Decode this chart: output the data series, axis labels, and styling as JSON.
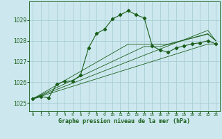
{
  "title": "Graphe pression niveau de la mer (hPa)",
  "bg_color": "#cce8ee",
  "grid_color": "#aacdd6",
  "line_color": "#1a5e1a",
  "xlim": [
    -0.5,
    23.5
  ],
  "ylim": [
    1024.6,
    1029.9
  ],
  "yticks": [
    1025,
    1026,
    1027,
    1028,
    1029
  ],
  "xticks": [
    0,
    1,
    2,
    3,
    4,
    5,
    6,
    7,
    8,
    9,
    10,
    11,
    12,
    13,
    14,
    15,
    16,
    17,
    18,
    19,
    20,
    21,
    22,
    23
  ],
  "main_x": [
    0,
    1,
    2,
    3,
    4,
    5,
    6,
    7,
    8,
    9,
    10,
    11,
    12,
    13,
    14,
    15,
    16,
    17,
    18,
    19,
    20,
    21,
    22,
    23
  ],
  "main_y": [
    1025.2,
    1025.3,
    1025.25,
    1025.9,
    1026.05,
    1026.05,
    1026.35,
    1027.65,
    1028.35,
    1028.55,
    1029.05,
    1029.25,
    1029.45,
    1029.25,
    1029.1,
    1027.75,
    1027.55,
    1027.45,
    1027.65,
    1027.75,
    1027.85,
    1027.9,
    1028.0,
    1027.85
  ],
  "forecast_lines": [
    [
      1025.2,
      1025.32,
      1025.44,
      1025.56,
      1025.68,
      1025.8,
      1025.92,
      1026.04,
      1026.16,
      1026.28,
      1026.4,
      1026.52,
      1026.64,
      1026.76,
      1026.88,
      1027.0,
      1027.12,
      1027.24,
      1027.36,
      1027.48,
      1027.6,
      1027.72,
      1027.84,
      1027.85
    ],
    [
      1025.2,
      1025.35,
      1025.5,
      1025.65,
      1025.8,
      1025.95,
      1026.1,
      1026.25,
      1026.4,
      1026.55,
      1026.7,
      1026.85,
      1027.0,
      1027.15,
      1027.3,
      1027.45,
      1027.6,
      1027.75,
      1027.9,
      1028.05,
      1028.2,
      1028.35,
      1028.5,
      1028.0
    ],
    [
      1025.2,
      1025.38,
      1025.56,
      1025.74,
      1025.92,
      1026.1,
      1026.28,
      1026.46,
      1026.64,
      1026.82,
      1027.0,
      1027.18,
      1027.36,
      1027.54,
      1027.72,
      1027.72,
      1027.72,
      1027.82,
      1027.92,
      1028.02,
      1028.12,
      1028.22,
      1028.32,
      1028.0
    ],
    [
      1025.2,
      1025.42,
      1025.64,
      1025.86,
      1026.08,
      1026.3,
      1026.52,
      1026.74,
      1026.96,
      1027.18,
      1027.4,
      1027.62,
      1027.84,
      1027.84,
      1027.84,
      1027.84,
      1027.84,
      1027.84,
      1027.94,
      1028.04,
      1028.14,
      1028.24,
      1028.34,
      1028.0
    ]
  ]
}
